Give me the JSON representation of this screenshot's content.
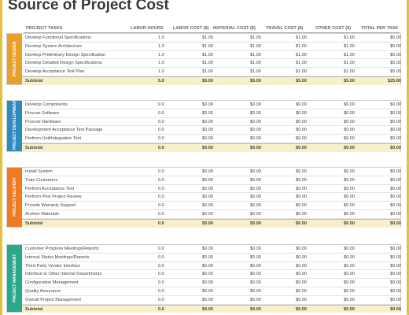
{
  "title": "Source of Project Cost",
  "headers": {
    "tasks": "PROJECT TASKS",
    "labor_hours": "LABOR HOURS",
    "labor_cost": "LABOR COST ($)",
    "material_cost": "MATERIAL COST ($)",
    "travel_cost": "TRAVEL COST ($)",
    "other_cost": "OTHER COST ($)",
    "total": "TOTAL PER TASK"
  },
  "colors": {
    "design": "#e8a02a",
    "development": "#2e8bbf",
    "delivery": "#f07a22",
    "management": "#2aa88c",
    "border": "#e2c23c",
    "subtotal_bg": "#f7efc8"
  },
  "sections": [
    {
      "label": "PROJECT DESIGN",
      "rows": [
        {
          "task": "Develop Functional Specifications",
          "hours": "1.0",
          "labor": "$1.00",
          "material": "$1.00",
          "travel": "$1.00",
          "other": "$1.00",
          "total": "$5.00"
        },
        {
          "task": "Develop System Architecture",
          "hours": "1.0",
          "labor": "$1.00",
          "material": "$1.00",
          "travel": "$1.00",
          "other": "$1.00",
          "total": "$5.00"
        },
        {
          "task": "Develop Preliminary Design Specification",
          "hours": "1.0",
          "labor": "$1.00",
          "material": "$1.00",
          "travel": "$1.00",
          "other": "$1.00",
          "total": "$5.00"
        },
        {
          "task": "Develop Detailed Design Specifications",
          "hours": "1.0",
          "labor": "$1.00",
          "material": "$1.00",
          "travel": "$1.00",
          "other": "$1.00",
          "total": "$5.00"
        },
        {
          "task": "Develop Acceptance Test Plan",
          "hours": "1.0",
          "labor": "$1.00",
          "material": "$1.00",
          "travel": "$1.00",
          "other": "$1.00",
          "total": "$5.00"
        }
      ],
      "subtotal": {
        "task": "Subtotal",
        "hours": "5.0",
        "labor": "$5.00",
        "material": "$5.00",
        "travel": "$5.00",
        "other": "$5.00",
        "total": "$25.00"
      }
    },
    {
      "label": "PROJECT DEVELOPMENT",
      "rows": [
        {
          "task": "Develop Components",
          "hours": "0.0",
          "labor": "$0.00",
          "material": "$0.00",
          "travel": "$0.00",
          "other": "$0.00",
          "total": "$0.00"
        },
        {
          "task": "Procure Software",
          "hours": "0.0",
          "labor": "$0.00",
          "material": "$0.00",
          "travel": "$0.00",
          "other": "$0.00",
          "total": "$0.00"
        },
        {
          "task": "Procure Hardware",
          "hours": "0.0",
          "labor": "$0.00",
          "material": "$0.00",
          "travel": "$0.00",
          "other": "$0.00",
          "total": "$0.00"
        },
        {
          "task": "Development Acceptance Test Package",
          "hours": "0.0",
          "labor": "$0.00",
          "material": "$0.00",
          "travel": "$0.00",
          "other": "$0.00",
          "total": "$0.00"
        },
        {
          "task": "Perform Unit/Integration Test",
          "hours": "0.0",
          "labor": "$0.00",
          "material": "$0.00",
          "travel": "$0.00",
          "other": "$0.00",
          "total": "$0.00"
        }
      ],
      "subtotal": {
        "task": "Subtotal",
        "hours": "0.0",
        "labor": "$0.00",
        "material": "$0.00",
        "travel": "$0.00",
        "other": "$0.00",
        "total": "$0.00"
      }
    },
    {
      "label": "PROJECT DELIVERY",
      "rows": [
        {
          "task": "Install System",
          "hours": "0.0",
          "labor": "$0.00",
          "material": "$0.00",
          "travel": "$0.00",
          "other": "$0.00",
          "total": "$0.00"
        },
        {
          "task": "Train Customers",
          "hours": "0.0",
          "labor": "$0.00",
          "material": "$0.00",
          "travel": "$0.00",
          "other": "$0.00",
          "total": "$0.00"
        },
        {
          "task": "Perform Acceptance Test",
          "hours": "0.0",
          "labor": "$0.00",
          "material": "$0.00",
          "travel": "$0.00",
          "other": "$0.00",
          "total": "$0.00"
        },
        {
          "task": "Perform Post Project Review",
          "hours": "0.0",
          "labor": "$0.00",
          "material": "$0.00",
          "travel": "$0.00",
          "other": "$0.00",
          "total": "$0.00"
        },
        {
          "task": "Provide Warranty Support",
          "hours": "0.0",
          "labor": "$0.00",
          "material": "$0.00",
          "travel": "$0.00",
          "other": "$0.00",
          "total": "$0.00"
        },
        {
          "task": "Archive Materials",
          "hours": "0.0",
          "labor": "$0.00",
          "material": "$0.00",
          "travel": "$0.00",
          "other": "$0.00",
          "total": "$0.00"
        }
      ],
      "subtotal": {
        "task": "Subtotal",
        "hours": "0.0",
        "labor": "$0.00",
        "material": "$0.00",
        "travel": "$0.00",
        "other": "$0.00",
        "total": "$0.00"
      }
    },
    {
      "label": "PROJECT MANAGEMENT",
      "rows": [
        {
          "task": "Customer Progress Meetings/Reports",
          "hours": "0.0",
          "labor": "$0.00",
          "material": "$0.00",
          "travel": "$0.00",
          "other": "$0.00",
          "total": "$0.00"
        },
        {
          "task": "Internal Status Meetings/Reports",
          "hours": "0.0",
          "labor": "$0.00",
          "material": "$0.00",
          "travel": "$0.00",
          "other": "$0.00",
          "total": "$0.00"
        },
        {
          "task": "Third-Party Vendor Interface",
          "hours": "0.0",
          "labor": "$0.00",
          "material": "$0.00",
          "travel": "$0.00",
          "other": "$0.00",
          "total": "$0.00"
        },
        {
          "task": "Interface to Other Internal Departments",
          "hours": "0.0",
          "labor": "$0.00",
          "material": "$0.00",
          "travel": "$0.00",
          "other": "$0.00",
          "total": "$0.00"
        },
        {
          "task": "Configuration Management",
          "hours": "0.0",
          "labor": "$0.00",
          "material": "$0.00",
          "travel": "$0.00",
          "other": "$0.00",
          "total": "$0.00"
        },
        {
          "task": "Quality Assurance",
          "hours": "0.0",
          "labor": "$0.00",
          "material": "$0.00",
          "travel": "$0.00",
          "other": "$0.00",
          "total": "$0.00"
        },
        {
          "task": "Overall Project Management",
          "hours": "0.0",
          "labor": "$0.00",
          "material": "$0.00",
          "travel": "$0.00",
          "other": "$0.00",
          "total": "$0.00"
        }
      ],
      "subtotal": {
        "task": "Subtotal",
        "hours": "0.0",
        "labor": "$0.00",
        "material": "$0.00",
        "travel": "$0.00",
        "other": "$0.00",
        "total": "$0.00"
      }
    }
  ]
}
